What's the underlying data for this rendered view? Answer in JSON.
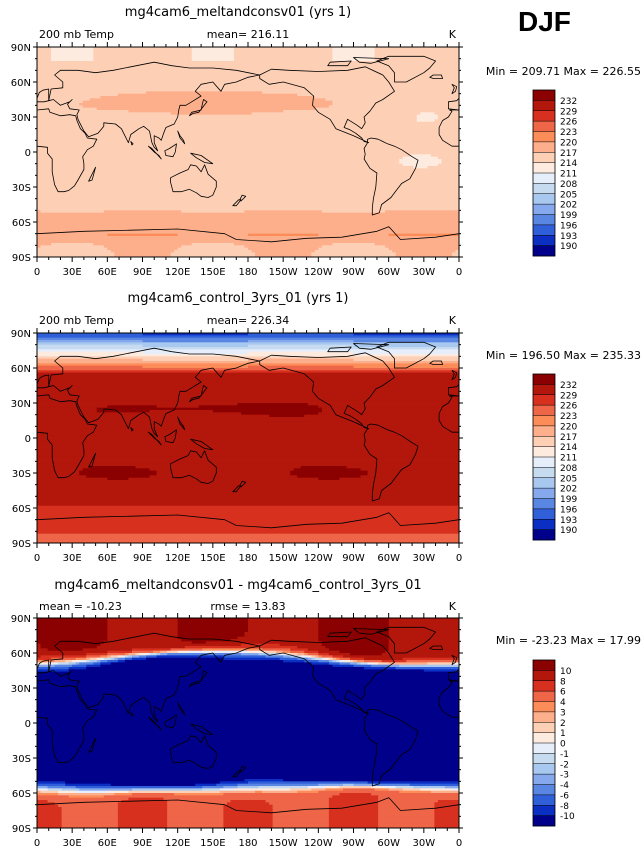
{
  "season": "DJF",
  "lat_ticks": [
    "90N",
    "60N",
    "30N",
    "0",
    "30S",
    "60S",
    "90S"
  ],
  "lon_ticks": [
    "0",
    "30E",
    "60E",
    "90E",
    "120E",
    "150E",
    "180",
    "150W",
    "120W",
    "90W",
    "60W",
    "30W",
    "0"
  ],
  "colors": {
    "reds": [
      "#8b0000",
      "#b3160b",
      "#d7301f",
      "#ef6548",
      "#fc8d59",
      "#fdae8b",
      "#fdd0b6",
      "#feebe0"
    ],
    "blues": [
      "#e6eefb",
      "#c6dbef",
      "#a8c8f0",
      "#85a9ec",
      "#5a86e3",
      "#2f5fd9",
      "#0a2fc2",
      "#00008b"
    ],
    "land_outline": "#000000"
  },
  "chart_data": [
    {
      "type": "heatmap",
      "title": "mg4cam6_meltandconsv01 (yrs 1)",
      "left_label": "200 mb Temp",
      "center_label": "mean= 216.11",
      "unit": "K",
      "stats": "Min = 209.71 Max = 226.55",
      "min": 209.71,
      "max": 226.55,
      "mean": 216.11,
      "pattern": "model",
      "xlim": [
        0,
        360
      ],
      "ylim": [
        -90,
        90
      ],
      "colorbar_levels": [
        "232",
        "229",
        "226",
        "223",
        "220",
        "217",
        "214",
        "211",
        "208",
        "205",
        "202",
        "199",
        "196",
        "193",
        "190"
      ]
    },
    {
      "type": "heatmap",
      "title": "mg4cam6_control_3yrs_01 (yrs 1)",
      "left_label": "200 mb Temp",
      "center_label": "mean= 226.34",
      "unit": "K",
      "stats": "Min = 196.50 Max = 235.33",
      "min": 196.5,
      "max": 235.33,
      "mean": 226.34,
      "pattern": "control",
      "xlim": [
        0,
        360
      ],
      "ylim": [
        -90,
        90
      ],
      "colorbar_levels": [
        "232",
        "229",
        "226",
        "223",
        "220",
        "217",
        "214",
        "211",
        "208",
        "205",
        "202",
        "199",
        "196",
        "193",
        "190"
      ]
    },
    {
      "type": "heatmap",
      "title": "mg4cam6_meltandconsv01 - mg4cam6_control_3yrs_01",
      "left_label": "mean = -10.23",
      "center_label": "rmse =  13.83",
      "unit": "K",
      "stats": "Min = -23.23 Max =  17.99",
      "min": -23.23,
      "max": 17.99,
      "mean": -10.23,
      "rmse": 13.83,
      "pattern": "difference",
      "xlim": [
        0,
        360
      ],
      "ylim": [
        -90,
        90
      ],
      "colorbar_levels": [
        "10",
        "8",
        "6",
        "4",
        "3",
        "2",
        "1",
        "0",
        "-1",
        "-2",
        "-3",
        "-4",
        "-6",
        "-8",
        "-10"
      ]
    }
  ]
}
